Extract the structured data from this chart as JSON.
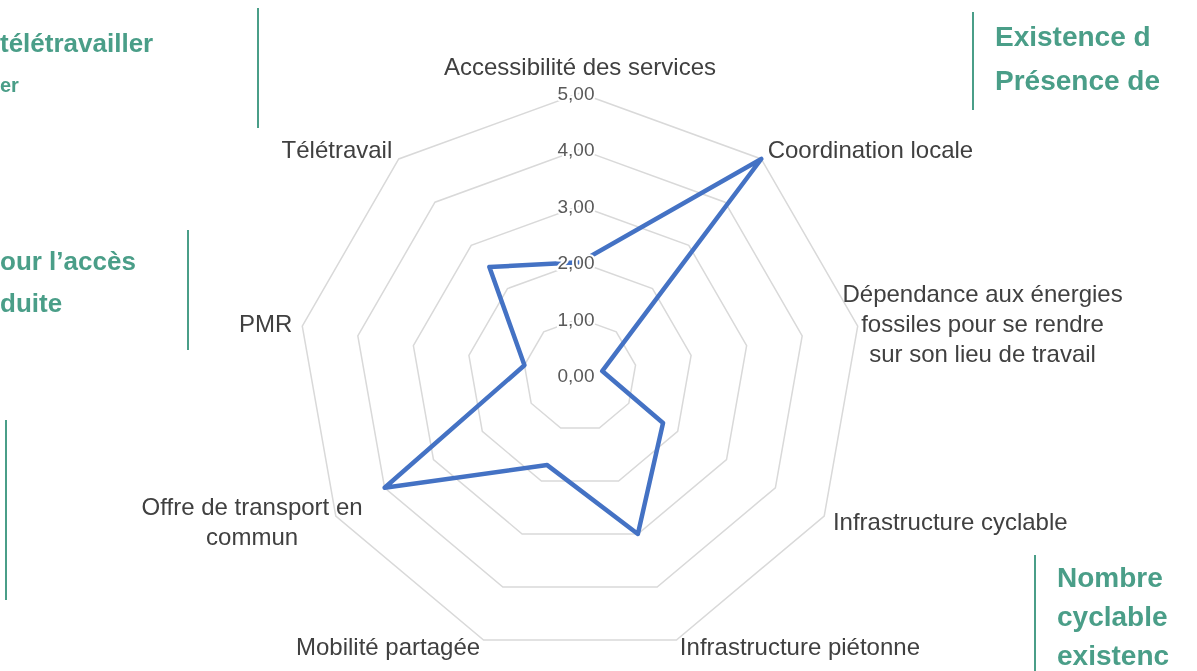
{
  "chart_data": {
    "type": "radar",
    "categories": [
      "Accessibilité des services",
      "Coordination locale",
      "Dépendance aux énergies fossiles pour se rendre sur son lieu de travail",
      "Infrastructure cyclable",
      "Infrastructure piétonne",
      "Mobilité partagée",
      "Offre de transport en commun",
      "PMR",
      "Télétravail"
    ],
    "series": [
      {
        "color": "#4472c4",
        "values": [
          2.0,
          5.0,
          0.4,
          1.7,
          3.0,
          1.7,
          4.0,
          1.0,
          2.5
        ]
      }
    ],
    "ylim": [
      0,
      5
    ],
    "yticks": [
      {
        "value": 0,
        "label": "0,00"
      },
      {
        "value": 1,
        "label": "1,00"
      },
      {
        "value": 2,
        "label": "2,00"
      },
      {
        "value": 3,
        "label": "3,00"
      },
      {
        "value": 4,
        "label": "4,00"
      },
      {
        "value": 5,
        "label": "5,00"
      }
    ],
    "grid": true,
    "marker": "none",
    "annotations": [
      "télétravailler",
      "er",
      "our l’accès",
      "duite",
      "Existence d",
      "Présence de",
      "Nombre",
      "cyclable",
      "existenc"
    ]
  }
}
